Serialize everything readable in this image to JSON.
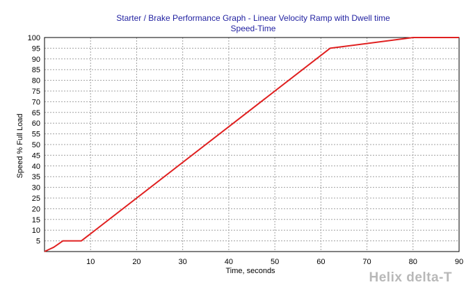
{
  "chart_data": {
    "type": "line",
    "title": "Starter / Brake Performance Graph - Linear Velocity Ramp with Dwell time",
    "subtitle": "Speed-Time",
    "xlabel": "Time, seconds",
    "ylabel": "Speed % Full Load",
    "xlim": [
      0,
      90
    ],
    "ylim": [
      0,
      100
    ],
    "x_ticks": [
      10,
      20,
      30,
      40,
      50,
      60,
      70,
      80,
      90
    ],
    "y_ticks": [
      5,
      10,
      15,
      20,
      25,
      30,
      35,
      40,
      45,
      50,
      55,
      60,
      65,
      70,
      75,
      80,
      85,
      90,
      95,
      100
    ],
    "grid": true,
    "series": [
      {
        "color": "#e02020",
        "x": [
          0,
          1,
          2,
          3,
          4,
          6,
          8,
          62,
          80,
          90
        ],
        "y": [
          0,
          1,
          2,
          3.5,
          5,
          5,
          5,
          95,
          100,
          100
        ]
      }
    ]
  },
  "watermark": "Helix delta-T"
}
